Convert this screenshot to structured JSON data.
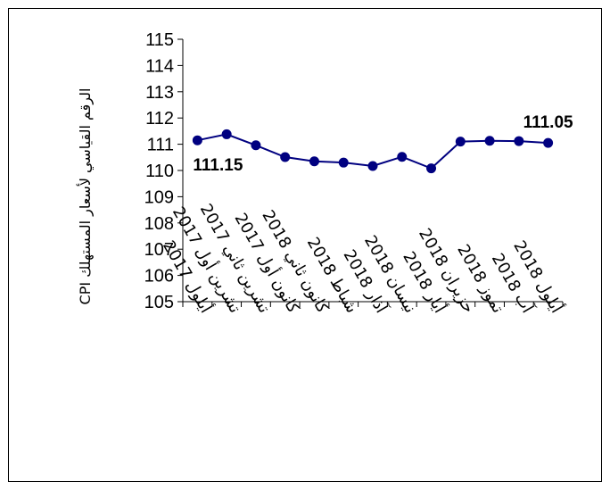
{
  "chart_data": {
    "type": "line",
    "title": "",
    "xlabel": "",
    "ylabel": "الرقم القياسي لأسعار المستهلك CPI",
    "ylim": [
      105,
      115
    ],
    "yticks": [
      105,
      106,
      107,
      108,
      109,
      110,
      111,
      112,
      113,
      114,
      115
    ],
    "grid": false,
    "legend": "none",
    "line_color": "#000080",
    "categories": [
      "أيلول 2017",
      "تشرين أول 2017",
      "تشرين ثاني 2017",
      "كانون أول 2017",
      "كانون ثاني 2018",
      "شباط 2018",
      "آذار 2018",
      "نيسان 2018",
      "أيار 2018",
      "حزيران 2018",
      "تموز 2018",
      "آب 2018",
      "أيلول 2018"
    ],
    "series": [
      {
        "values": [
          111.15,
          111.38,
          110.96,
          110.51,
          110.35,
          110.3,
          110.17,
          110.52,
          110.08,
          111.1,
          111.13,
          111.12,
          111.05
        ]
      }
    ],
    "data_labels": [
      {
        "index": 0,
        "text": "111.15"
      },
      {
        "index": 12,
        "text": "111.05"
      }
    ]
  }
}
